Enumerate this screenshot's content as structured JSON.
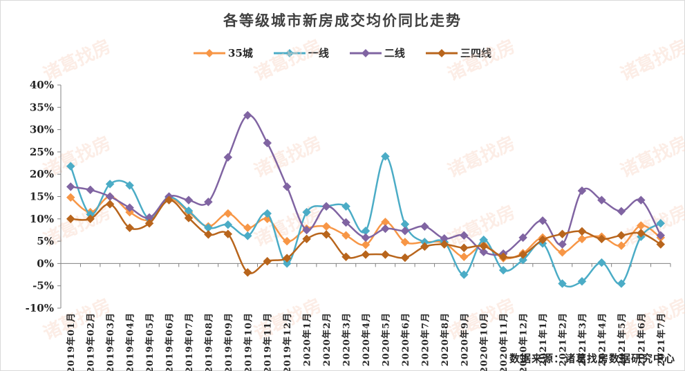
{
  "chart_data": {
    "type": "line",
    "title": "各等级城市新房成交均价同比走势",
    "categories": [
      "2019年01月",
      "2019年02月",
      "2019年03月",
      "2019年04月",
      "2019年05月",
      "2019年06月",
      "2019年07月",
      "2019年08月",
      "2019年09月",
      "2019年10月",
      "2019年11月",
      "2019年12月",
      "2020年1月",
      "2020年2月",
      "2020年3月",
      "2020年4月",
      "2020年5月",
      "2020年6月",
      "2020年7月",
      "2020年8月",
      "2020年9月",
      "2020年10月",
      "2020年11月",
      "2020年12月",
      "2021年1月",
      "2021年2月",
      "2021年3月",
      "2021年4月",
      "2021年5月",
      "2021年6月",
      "2021年7月"
    ],
    "y_ticks": [
      "-10%",
      "-5%",
      "0%",
      "5%",
      "10%",
      "15%",
      "20%",
      "25%",
      "30%",
      "35%",
      "40%"
    ],
    "ylim": [
      -10,
      40
    ],
    "legend_position": "top",
    "grid": false,
    "series": [
      {
        "name": "35城",
        "color": "#F79646",
        "marker": "diamond",
        "values": [
          14.8,
          11.5,
          15.0,
          11.5,
          9.8,
          14.5,
          11.5,
          8.3,
          11.2,
          8.0,
          10.0,
          5.0,
          7.8,
          8.3,
          6.3,
          4.2,
          9.3,
          4.8,
          4.8,
          4.6,
          1.5,
          4.2,
          1.2,
          2.3,
          5.8,
          2.5,
          5.5,
          6.0,
          4.0,
          8.5,
          5.8
        ]
      },
      {
        "name": "一线",
        "color": "#4BACC6",
        "marker": "diamond",
        "values": [
          21.8,
          11.0,
          17.8,
          17.5,
          10.0,
          14.8,
          11.8,
          8.0,
          8.7,
          6.2,
          11.2,
          0.0,
          11.5,
          12.8,
          12.8,
          7.3,
          24.0,
          8.8,
          4.8,
          4.8,
          -2.5,
          5.3,
          -1.5,
          0.8,
          4.5,
          -4.5,
          -4.0,
          0.2,
          -4.5,
          6.0,
          9.0
        ]
      },
      {
        "name": "二线",
        "color": "#8064A2",
        "marker": "diamond",
        "values": [
          17.2,
          16.5,
          15.0,
          12.5,
          10.3,
          15.0,
          14.2,
          13.8,
          23.8,
          33.2,
          27.0,
          17.2,
          7.5,
          12.8,
          9.2,
          5.8,
          7.8,
          7.3,
          8.3,
          5.6,
          6.3,
          2.6,
          2.2,
          5.8,
          9.6,
          4.3,
          16.3,
          14.2,
          11.7,
          14.2,
          6.3
        ]
      },
      {
        "name": "三四线",
        "color": "#B8651C",
        "marker": "diamond",
        "values": [
          10.0,
          10.0,
          13.3,
          8.0,
          9.0,
          14.2,
          10.2,
          6.5,
          6.6,
          -2.0,
          0.5,
          1.2,
          5.5,
          6.5,
          1.5,
          2.0,
          2.0,
          1.3,
          3.8,
          4.3,
          3.5,
          3.9,
          1.5,
          2.0,
          5.3,
          6.6,
          7.2,
          5.5,
          6.3,
          6.8,
          4.3
        ]
      }
    ]
  },
  "source_text": "数据来源：诸葛找房数据研究中心",
  "watermark_text": "诸葛找房"
}
